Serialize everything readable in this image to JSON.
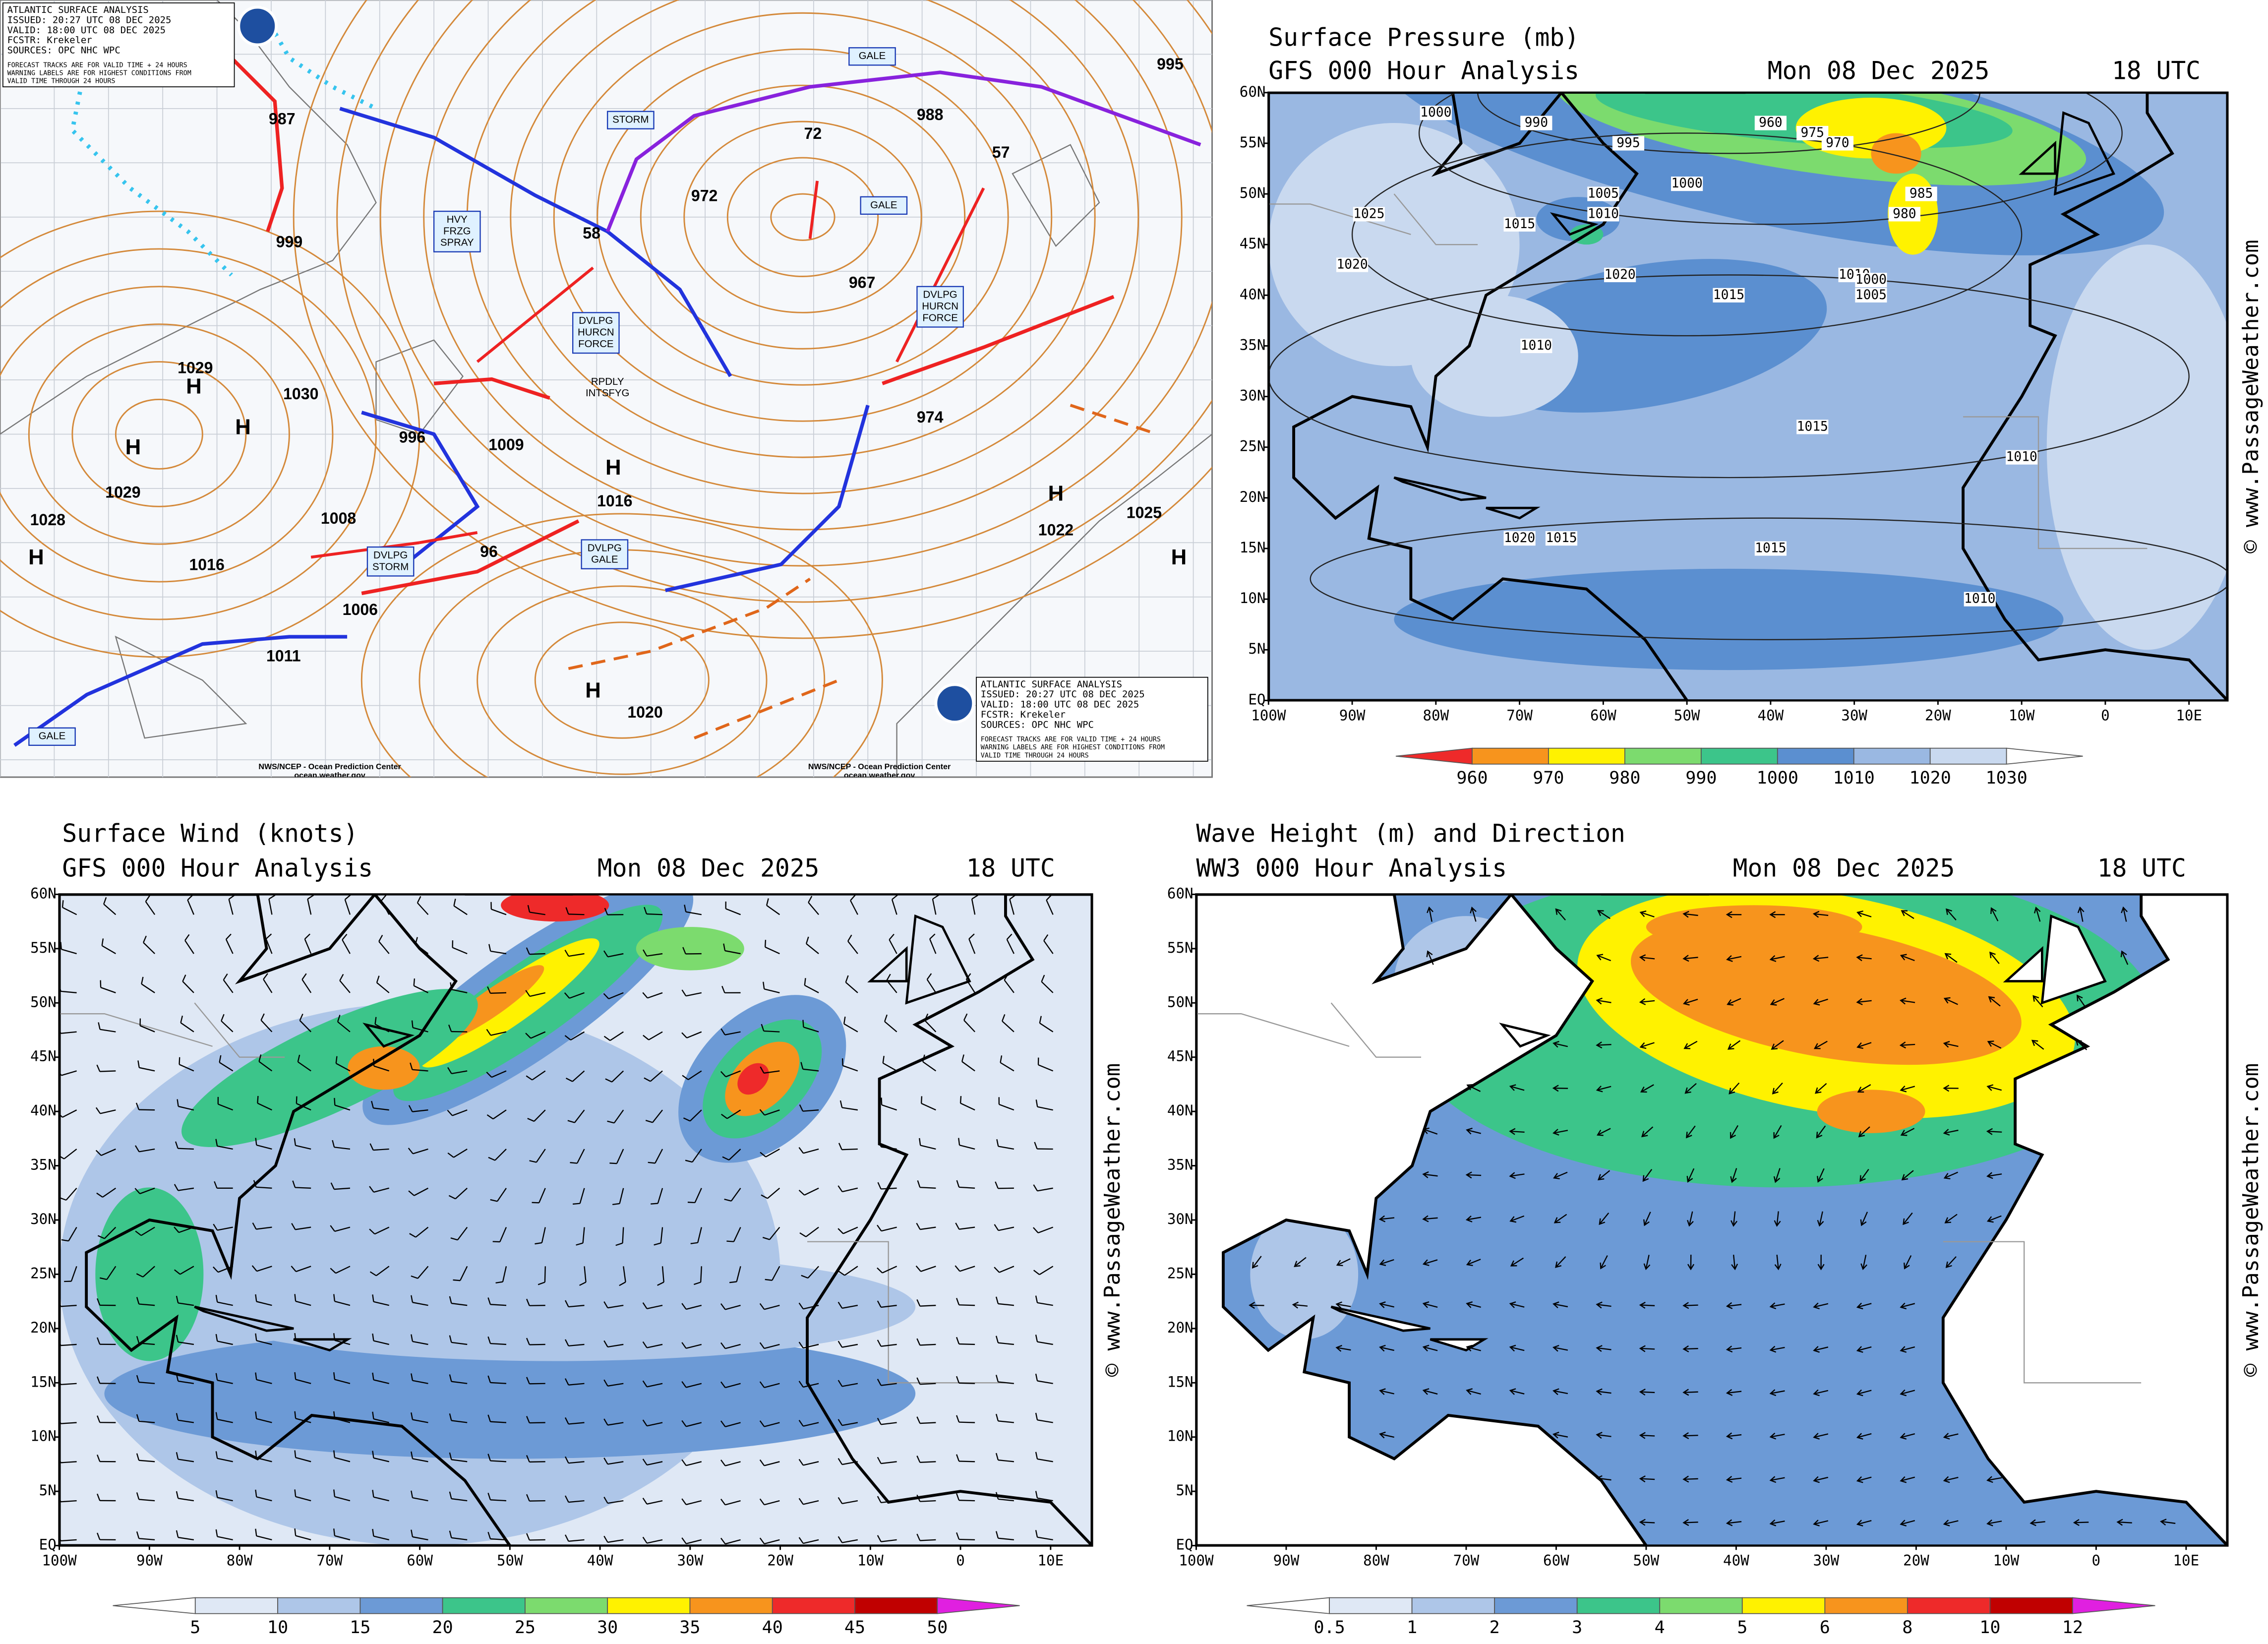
{
  "surface_analysis": {
    "header": [
      "ATLANTIC SURFACE ANALYSIS",
      "ISSUED: 20:27 UTC 08 DEC 2025",
      "VALID: 18:00 UTC 08 DEC 2025",
      "FCSTR: Krekeler",
      "SOURCES: OPC NHC WPC"
    ],
    "note": [
      "FORECAST TRACKS ARE FOR VALID TIME + 24 HOURS",
      "WARNING LABELS ARE FOR HIGHEST CONDITIONS FROM",
      "VALID TIME THROUGH 24 HOURS"
    ],
    "pressure_labels": [
      987,
      999,
      1029,
      1030,
      996,
      1009,
      1008,
      1016,
      1011,
      1006,
      1028,
      1029,
      1016,
      972,
      988,
      967,
      974,
      1022,
      1025,
      1020,
      995,
      72,
      57,
      58,
      96
    ],
    "high_label": "H",
    "warnings": [
      [
        "STORM"
      ],
      [
        "GALE"
      ],
      [
        "GALE"
      ],
      [
        "HVY",
        "FRZG",
        "SPRAY"
      ],
      [
        "DVLPG",
        "HURCN",
        "FORCE"
      ],
      [
        "DVLPG",
        "HURCN",
        "FORCE"
      ],
      [
        "RPDLY",
        "INTSFYG"
      ],
      [
        "DVLPG",
        "STORM"
      ],
      [
        "DVLPG",
        "GALE"
      ],
      [
        "GALE"
      ]
    ],
    "credit": [
      "NWS/NCEP - Ocean Prediction Center",
      "ocean.weather.gov"
    ]
  },
  "panels": [
    {
      "title": "Surface Pressure (mb)",
      "subtitle": "GFS 000 Hour Analysis",
      "date": "Mon 08 Dec 2025",
      "time": "18 UTC",
      "colorbar": [
        960,
        970,
        980,
        990,
        1000,
        1010,
        1020,
        1030
      ],
      "contour_labels": [
        1000,
        990,
        995,
        1000,
        1005,
        1010,
        1015,
        1020,
        1025,
        975,
        980,
        970,
        960,
        985,
        1010,
        1015,
        1020,
        1015,
        1010,
        1015,
        1020,
        1010,
        1015,
        1010,
        1005,
        1000
      ]
    },
    {
      "title": "Surface Wind (knots)",
      "subtitle": "GFS 000 Hour Analysis",
      "date": "Mon 08 Dec 2025",
      "time": "18 UTC",
      "colorbar": [
        5,
        10,
        15,
        20,
        25,
        30,
        35,
        40,
        45,
        50
      ]
    },
    {
      "title": "Wave Height (m) and Direction",
      "subtitle": "WW3 000 Hour Analysis",
      "date": "Mon 08 Dec 2025",
      "time": "18 UTC",
      "colorbar": [
        0.5,
        1,
        2,
        3,
        4,
        5,
        6,
        8,
        10,
        12
      ]
    }
  ],
  "lat_labels": [
    "60N",
    "55N",
    "50N",
    "45N",
    "40N",
    "35N",
    "30N",
    "25N",
    "20N",
    "15N",
    "10N",
    "5N",
    "EQ"
  ],
  "lon_labels": [
    "100W",
    "90W",
    "80W",
    "70W",
    "60W",
    "50W",
    "40W",
    "30W",
    "20W",
    "10W",
    "0",
    "10E"
  ],
  "watermark": "© www.PassageWeather.com"
}
